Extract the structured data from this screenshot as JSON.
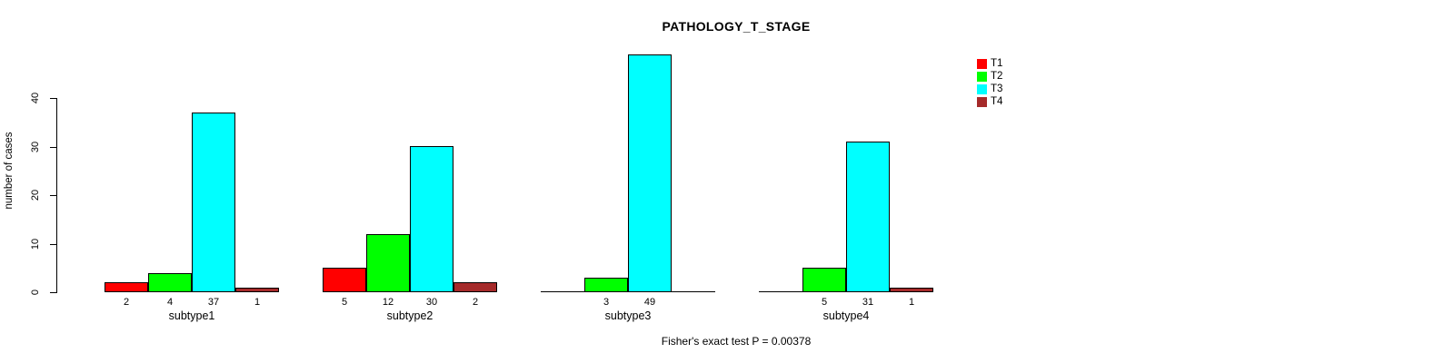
{
  "title": "PATHOLOGY_T_STAGE",
  "footer": {
    "fisher_text": "Fisher's exact test P = 0.00378"
  },
  "chart_data": {
    "type": "bar",
    "title": "PATHOLOGY_T_STAGE",
    "xlabel": "",
    "ylabel": "number of cases",
    "ylim": [
      0,
      49
    ],
    "yticks": [
      0,
      10,
      20,
      30,
      40
    ],
    "grid": false,
    "legend_position": "top-right",
    "bar_value_labels_shown": true,
    "annotation": "Fisher's exact test P = 0.00378",
    "categories": [
      "subtype1",
      "subtype2",
      "subtype3",
      "subtype4"
    ],
    "series": [
      {
        "name": "T1",
        "color": "#FF0000",
        "values": [
          2,
          5,
          0,
          0
        ]
      },
      {
        "name": "T2",
        "color": "#00FF00",
        "values": [
          4,
          12,
          3,
          5
        ]
      },
      {
        "name": "T3",
        "color": "#00FFFF",
        "values": [
          37,
          30,
          49,
          31
        ]
      },
      {
        "name": "T4",
        "color": "#A52A2A",
        "values": [
          1,
          2,
          0,
          1
        ]
      }
    ],
    "axis_color": "#000000",
    "text_color": "#000000",
    "background_color": "#FFFFFF"
  }
}
